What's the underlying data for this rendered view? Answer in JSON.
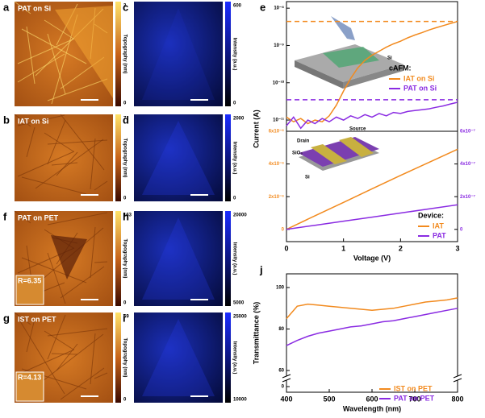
{
  "panels": [
    {
      "letter": "a",
      "label": "PAT on Si",
      "colorbar_label": "Topography (nm)",
      "colorbar_max": 3,
      "colorbar_min": 0
    },
    {
      "letter": "b",
      "label": "IAT on Si",
      "colorbar_label": "Topography (nm)",
      "colorbar_max": 7,
      "colorbar_min": 0
    },
    {
      "letter": "f",
      "label": "PAT on PET",
      "colorbar_label": "Topography (nm)",
      "colorbar_max": 163,
      "colorbar_min": 0,
      "inset": "R=6.35"
    },
    {
      "letter": "g",
      "label": "IST on PET",
      "colorbar_label": "Topography (nm)",
      "colorbar_max": 69,
      "colorbar_min": 0,
      "inset": "R=4.13"
    },
    {
      "letter": "c",
      "colorbar_label": "Intensity (a.u.)",
      "colorbar_max": 600,
      "colorbar_min": 0
    },
    {
      "letter": "d",
      "colorbar_label": "Intensity (a.u.)",
      "colorbar_max": 2000,
      "colorbar_min": 0
    },
    {
      "letter": "h",
      "colorbar_label": "Intensity (a.u.)",
      "colorbar_max": 20000,
      "colorbar_min": 5000
    },
    {
      "letter": "i",
      "colorbar_label": "Intensity (a.u.)",
      "colorbar_max": 25000,
      "colorbar_min": 10000
    }
  ],
  "chart_data": [
    {
      "type": "line",
      "letter": "e",
      "ylabel": "Current (A)",
      "log_y": true,
      "legend_title": "cAFM:",
      "annotations": [
        "Si"
      ],
      "xlim": [
        0,
        3
      ],
      "ylim": [
        5e-12,
        1.5e-08
      ],
      "yticks": [
        {
          "value": 1e-08,
          "label": "10⁻⁸"
        },
        {
          "value": 1e-09,
          "label": "10⁻⁹"
        },
        {
          "value": 1e-10,
          "label": "10⁻¹⁰"
        },
        {
          "value": 1e-11,
          "label": "10⁻¹¹"
        }
      ],
      "x": [
        0,
        0.125,
        0.25,
        0.375,
        0.5,
        0.625,
        0.75,
        0.875,
        1,
        1.125,
        1.25,
        1.375,
        1.5,
        1.625,
        1.75,
        1.875,
        2,
        2.125,
        2.25,
        2.375,
        2.5,
        2.625,
        2.75,
        2.875,
        3
      ],
      "series": [
        {
          "name": "IAT on Si",
          "color": "#f28a1e",
          "values": [
            1.2e-11,
            9e-12,
            1.1e-11,
            8e-12,
            1e-11,
            9e-12,
            1.3e-11,
            2.5e-11,
            6e-11,
            1.3e-10,
            2.5e-10,
            4e-10,
            5.5e-10,
            7e-10,
            9e-10,
            1.1e-09,
            1.3e-09,
            1.6e-09,
            1.9e-09,
            2.2e-09,
            2.6e-09,
            3e-09,
            3.4e-09,
            3.9e-09,
            4.4e-09
          ]
        },
        {
          "name": "PAT on Si",
          "color": "#8a2be2",
          "values": [
            7e-12,
            1.2e-11,
            6e-12,
            1e-11,
            8e-12,
            1.1e-11,
            9e-12,
            1.2e-11,
            1e-11,
            1.3e-11,
            1.1e-11,
            1.4e-11,
            1.2e-11,
            1.5e-11,
            1.3e-11,
            1.6e-11,
            1.5e-11,
            1.7e-11,
            1.8e-11,
            1.9e-11,
            2e-11,
            2.2e-11,
            2.4e-11,
            2.7e-11,
            3e-11
          ]
        }
      ],
      "reference_lines": [
        {
          "value": 4.4e-09,
          "color": "#f28a1e"
        },
        {
          "value": 3.5e-11,
          "color": "#8a2be2"
        }
      ]
    },
    {
      "type": "line",
      "xlabel": "Voltage (V)",
      "legend_title": "Device:",
      "annotations": [
        "Source",
        "Drain",
        "SiO₂",
        "Si"
      ],
      "xlim": [
        0,
        3
      ],
      "xticks": [
        0,
        1,
        2,
        3
      ],
      "ylim": [
        -7.5e-07,
        6e-06
      ],
      "y2lim": [
        -7.5e-08,
        6e-07
      ],
      "yticks": [
        0,
        {
          "value": 2e-06,
          "label": "2x10⁻⁶"
        },
        {
          "value": 4e-06,
          "label": "4x10⁻⁶"
        },
        {
          "value": 6e-06,
          "label": "6x10⁻⁶"
        }
      ],
      "y2ticks": [
        0,
        {
          "value": 2e-07,
          "label": "2x10⁻⁷"
        },
        {
          "value": 4e-07,
          "label": "4x10⁻⁷"
        },
        {
          "value": 6e-07,
          "label": "6x10⁻⁷"
        }
      ],
      "x": [
        0,
        0.5,
        1,
        1.5,
        2,
        2.5,
        3
      ],
      "series": [
        {
          "name": "IAT",
          "color": "#f28a1e",
          "values": [
            0,
            8.3e-07,
            1.65e-06,
            2.48e-06,
            3.3e-06,
            4.1e-06,
            4.9e-06
          ]
        },
        {
          "name": "PAT",
          "color": "#8a2be2",
          "axis": "y2",
          "values": [
            0,
            2.5e-08,
            5e-08,
            7.5e-08,
            1e-07,
            1.25e-07,
            1.5e-07
          ]
        }
      ]
    },
    {
      "type": "line",
      "letter": "j",
      "xlabel": "Wavelength (nm)",
      "ylabel": "Transmittance (%)",
      "axis_break": [
        0,
        60
      ],
      "xlim": [
        400,
        800
      ],
      "xticks": [
        400,
        500,
        600,
        700,
        800
      ],
      "ylim": [
        0,
        100
      ],
      "yticks": [
        0,
        60,
        80,
        100
      ],
      "x": [
        400,
        425,
        450,
        475,
        500,
        525,
        550,
        575,
        600,
        625,
        650,
        675,
        700,
        725,
        750,
        775,
        800
      ],
      "series": [
        {
          "name": "IST on PET",
          "color": "#f28a1e",
          "values": [
            85,
            91,
            92,
            91.5,
            91,
            90.5,
            90,
            89.5,
            89,
            89.5,
            90,
            91,
            92,
            93,
            93.5,
            94,
            95
          ]
        },
        {
          "name": "PAT on PET",
          "color": "#8a2be2",
          "values": [
            72,
            74.5,
            76.5,
            78,
            79,
            80,
            81,
            81.5,
            82.5,
            83.5,
            84,
            85,
            86,
            87,
            88,
            89,
            90
          ]
        }
      ]
    }
  ]
}
